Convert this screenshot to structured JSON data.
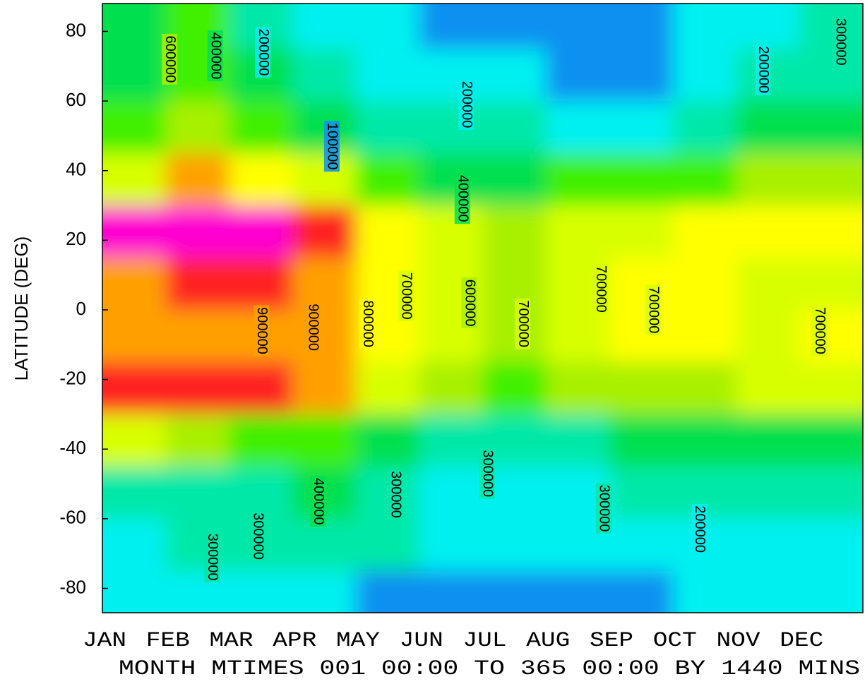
{
  "chart_data": {
    "type": "contour",
    "y_label": "LATITUDE (DEG)",
    "x_label": "MONTH MTIMES 001 00:00 TO 365 00:00 BY 1440 MINS",
    "categories": [
      "JAN",
      "FEB",
      "MAR",
      "APR",
      "MAY",
      "JUN",
      "JUL",
      "AUG",
      "SEP",
      "OCT",
      "NOV",
      "DEC"
    ],
    "xlim": [
      0,
      12
    ],
    "ylim": [
      -87,
      88
    ],
    "yticks": [
      -80,
      -60,
      -40,
      -20,
      0,
      20,
      40,
      60,
      80
    ],
    "y": [
      82.5,
      67.5,
      52.5,
      37.5,
      22.5,
      7.5,
      -7.5,
      -22.5,
      -37.5,
      -52.5,
      -67.5,
      -82.5
    ],
    "z": [
      [
        450000,
        550000,
        350000,
        250000,
        250000,
        150000,
        150000,
        150000,
        150000,
        200000,
        250000,
        300000
      ],
      [
        400000,
        500000,
        450000,
        300000,
        250000,
        250000,
        200000,
        150000,
        150000,
        250000,
        300000,
        350000
      ],
      [
        500000,
        600000,
        550000,
        450000,
        350000,
        300000,
        300000,
        250000,
        250000,
        350000,
        400000,
        450000
      ],
      [
        750000,
        900000,
        850000,
        700000,
        550000,
        450000,
        450000,
        500000,
        500000,
        550000,
        600000,
        650000
      ],
      [
        1150000,
        1150000,
        1100000,
        1050000,
        850000,
        700000,
        650000,
        750000,
        750000,
        850000,
        800000,
        850000
      ],
      [
        950000,
        1000000,
        1000000,
        950000,
        850000,
        750000,
        650000,
        750000,
        800000,
        800000,
        750000,
        750000
      ],
      [
        950000,
        950000,
        950000,
        950000,
        850000,
        750000,
        650000,
        750000,
        800000,
        800000,
        750000,
        800000
      ],
      [
        1050000,
        1050000,
        1000000,
        950000,
        750000,
        650000,
        550000,
        650000,
        650000,
        650000,
        700000,
        700000
      ],
      [
        700000,
        650000,
        550000,
        500000,
        400000,
        350000,
        300000,
        350000,
        400000,
        400000,
        450000,
        450000
      ],
      [
        300000,
        350000,
        350000,
        400000,
        350000,
        250000,
        250000,
        250000,
        300000,
        300000,
        300000,
        300000
      ],
      [
        250000,
        300000,
        300000,
        350000,
        300000,
        250000,
        200000,
        250000,
        250000,
        250000,
        250000,
        250000
      ],
      [
        250000,
        250000,
        250000,
        250000,
        150000,
        150000,
        150000,
        150000,
        150000,
        250000,
        250000,
        250000
      ]
    ],
    "levels": [
      100000,
      200000,
      300000,
      400000,
      500000,
      600000,
      700000,
      800000,
      900000,
      1000000,
      1100000
    ],
    "colors": [
      "#0030e0",
      "#0a90f0",
      "#00f0f0",
      "#00e8a8",
      "#00e050",
      "#40f000",
      "#a8f000",
      "#d8ff00",
      "#ffff00",
      "#ffa000",
      "#ff2020",
      "#ff00d0"
    ],
    "contour_labels": [
      {
        "value": 600000,
        "x": 1.06,
        "y": 72
      },
      {
        "value": 400000,
        "x": 1.78,
        "y": 73
      },
      {
        "value": 200000,
        "x": 2.53,
        "y": 74
      },
      {
        "value": 100000,
        "x": 3.62,
        "y": 47
      },
      {
        "value": 200000,
        "x": 5.74,
        "y": 59
      },
      {
        "value": 400000,
        "x": 5.68,
        "y": 32
      },
      {
        "value": 600000,
        "x": 5.79,
        "y": 2
      },
      {
        "value": 900000,
        "x": 2.51,
        "y": -6
      },
      {
        "value": 900000,
        "x": 3.32,
        "y": -5
      },
      {
        "value": 800000,
        "x": 4.18,
        "y": -4
      },
      {
        "value": 700000,
        "x": 4.79,
        "y": 4
      },
      {
        "value": 700000,
        "x": 6.63,
        "y": -4
      },
      {
        "value": 700000,
        "x": 7.86,
        "y": 6
      },
      {
        "value": 700000,
        "x": 8.69,
        "y": 0
      },
      {
        "value": 700000,
        "x": 11.31,
        "y": -6
      },
      {
        "value": 200000,
        "x": 10.42,
        "y": 69
      },
      {
        "value": 300000,
        "x": 11.64,
        "y": 77
      },
      {
        "value": 300000,
        "x": 1.73,
        "y": -71
      },
      {
        "value": 300000,
        "x": 2.45,
        "y": -65
      },
      {
        "value": 400000,
        "x": 3.4,
        "y": -55
      },
      {
        "value": 300000,
        "x": 4.62,
        "y": -53
      },
      {
        "value": 300000,
        "x": 6.07,
        "y": -47
      },
      {
        "value": 300000,
        "x": 7.91,
        "y": -57
      },
      {
        "value": 200000,
        "x": 9.42,
        "y": -63
      }
    ]
  }
}
